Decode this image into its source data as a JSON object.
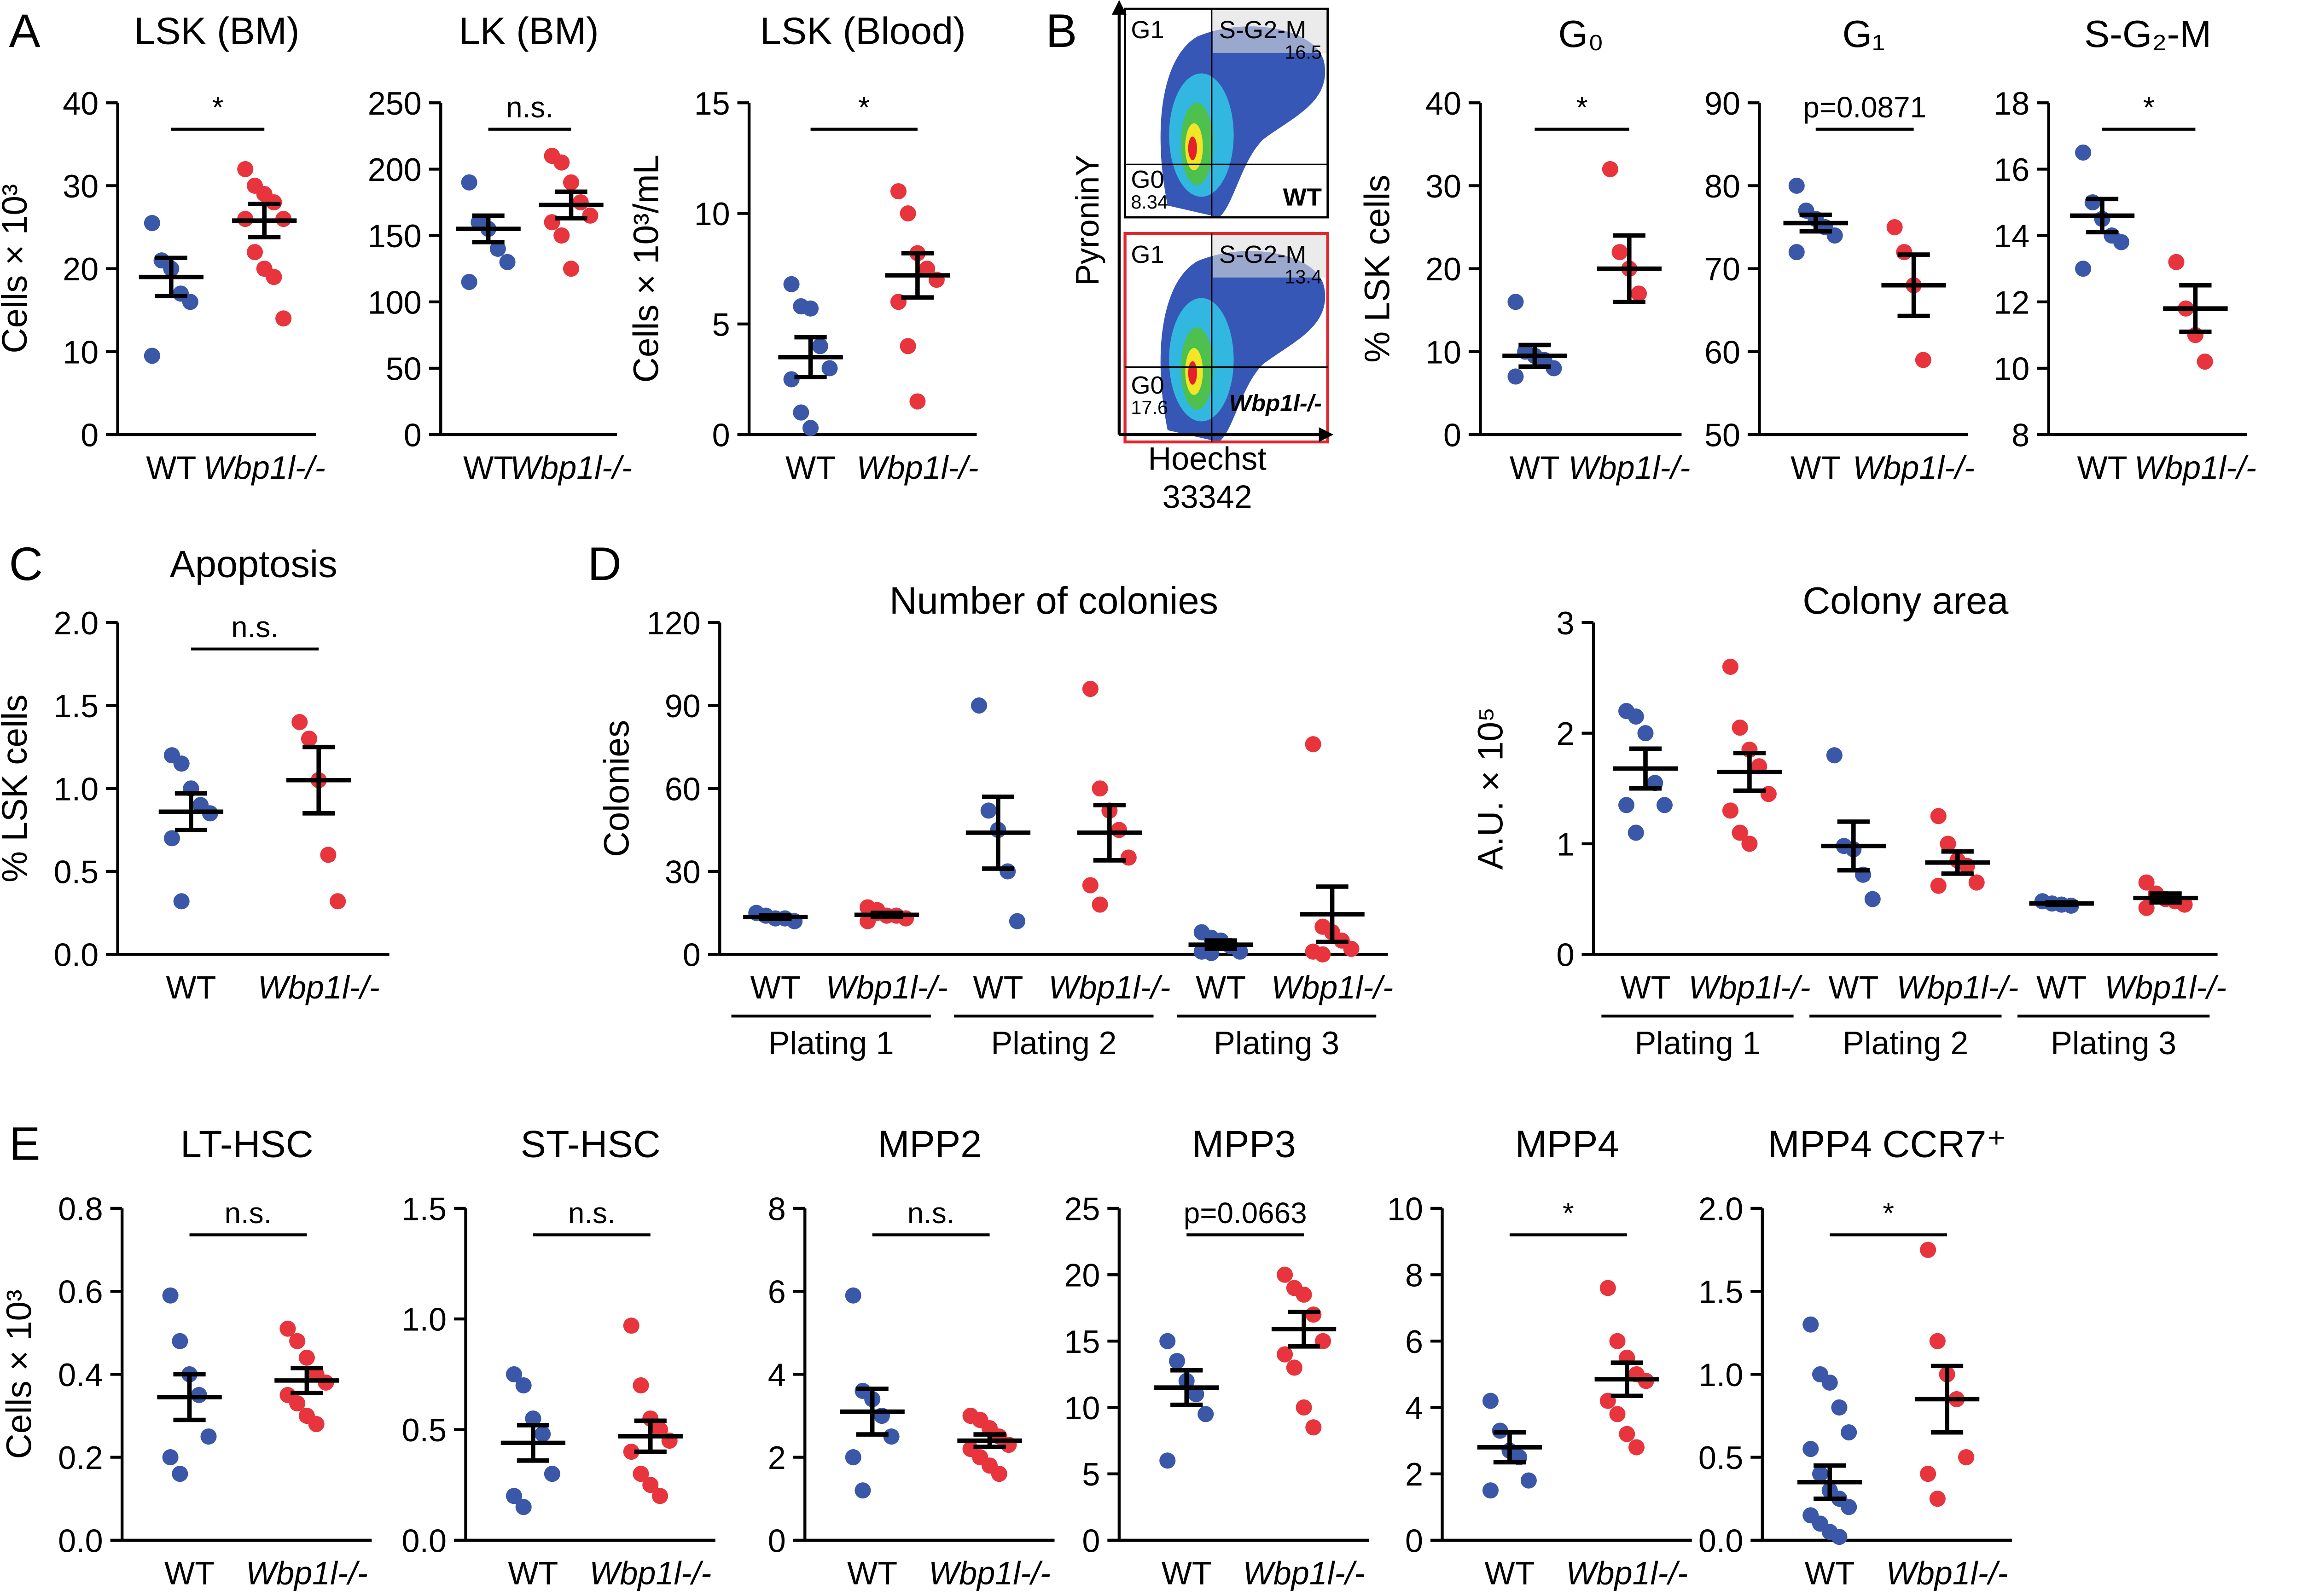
{
  "panels": [
    "A",
    "B",
    "C",
    "D",
    "E"
  ],
  "flow": {
    "ylabel": "PyroninY",
    "xlabel": [
      "Hoechst",
      "33342"
    ],
    "plots": [
      {
        "quadrants": [
          "G1",
          "S-G2-M",
          "G0"
        ],
        "values": [
          16.5,
          8.34
        ],
        "label": "WT"
      },
      {
        "quadrants": [
          "G1",
          "S-G2-M",
          "G0"
        ],
        "values": [
          13.4,
          17.6
        ],
        "label": "Wbp1l-/-"
      }
    ]
  },
  "chart_data": [
    {
      "type": "dot",
      "title": "LSK (BM)",
      "ylabel": "Cells × 10³",
      "ylim": [
        0,
        40
      ],
      "yticks": [
        0,
        10,
        20,
        30,
        40
      ],
      "annotation": "*",
      "series": [
        {
          "name": "WT",
          "color": "#3a57a8",
          "values": [
            25.5,
            21,
            20,
            17,
            16,
            9.5
          ],
          "mean": 19,
          "sem": 2.3
        },
        {
          "name": "Wbp1l-/-",
          "color": "#e8343c",
          "values": [
            32,
            30,
            29,
            28,
            26,
            26,
            22,
            20,
            19,
            14
          ],
          "mean": 25.8,
          "sem": 2
        }
      ]
    },
    {
      "type": "dot",
      "title": "LK (BM)",
      "ylim": [
        0,
        250
      ],
      "yticks": [
        0,
        50,
        100,
        150,
        200,
        250
      ],
      "annotation": "n.s.",
      "series": [
        {
          "name": "WT",
          "color": "#3a57a8",
          "values": [
            190,
            160,
            155,
            140,
            130,
            115
          ],
          "mean": 155,
          "sem": 10
        },
        {
          "name": "Wbp1l-/-",
          "color": "#e8343c",
          "values": [
            210,
            205,
            190,
            175,
            165,
            160,
            150,
            125
          ],
          "mean": 173,
          "sem": 10
        }
      ]
    },
    {
      "type": "dot",
      "title": "LSK (Blood)",
      "ylabel": "Cells × 10³/mL",
      "ylim": [
        0,
        15
      ],
      "yticks": [
        0,
        5,
        10,
        15
      ],
      "annotation": "*",
      "series": [
        {
          "name": "WT",
          "color": "#3a57a8",
          "values": [
            6.8,
            5.8,
            5.7,
            4,
            3,
            2.5,
            1,
            0.3
          ],
          "mean": 3.5,
          "sem": 0.9
        },
        {
          "name": "Wbp1l-/-",
          "color": "#e8343c",
          "values": [
            11,
            10,
            8.2,
            7.5,
            7,
            6,
            4,
            1.5
          ],
          "mean": 7.2,
          "sem": 1
        }
      ]
    },
    {
      "type": "dot",
      "title": "G₀",
      "ylabel": "% LSK cells",
      "ylim": [
        0,
        40
      ],
      "yticks": [
        0,
        10,
        20,
        30,
        40
      ],
      "annotation": "*",
      "series": [
        {
          "name": "WT",
          "color": "#3a57a8",
          "values": [
            16,
            10,
            9.5,
            9,
            8,
            7
          ],
          "mean": 9.5,
          "sem": 1.3
        },
        {
          "name": "Wbp1l-/-",
          "color": "#e8343c",
          "values": [
            32,
            22,
            20,
            17
          ],
          "mean": 20,
          "sem": 4
        }
      ]
    },
    {
      "type": "dot",
      "title": "G₁",
      "ylim": [
        50,
        90
      ],
      "yticks": [
        50,
        60,
        70,
        80,
        90
      ],
      "annotation": "p=0.0871",
      "series": [
        {
          "name": "WT",
          "color": "#3a57a8",
          "values": [
            80,
            77,
            76,
            75,
            74,
            72
          ],
          "mean": 75.5,
          "sem": 1
        },
        {
          "name": "Wbp1l-/-",
          "color": "#e8343c",
          "values": [
            75,
            72,
            68,
            59
          ],
          "mean": 68,
          "sem": 3.7
        }
      ]
    },
    {
      "type": "dot",
      "title": "S-G₂-M",
      "ylim": [
        8,
        18
      ],
      "yticks": [
        8,
        10,
        12,
        14,
        16,
        18
      ],
      "annotation": "*",
      "series": [
        {
          "name": "WT",
          "color": "#3a57a8",
          "values": [
            16.5,
            15,
            14.5,
            14,
            13.8,
            13
          ],
          "mean": 14.6,
          "sem": 0.5
        },
        {
          "name": "Wbp1l-/-",
          "color": "#e8343c",
          "values": [
            13.2,
            11.8,
            11,
            10.2
          ],
          "mean": 11.8,
          "sem": 0.7
        }
      ]
    },
    {
      "type": "dot",
      "title": "Apoptosis",
      "ylabel": "% LSK cells",
      "ylim": [
        0,
        2
      ],
      "yticks": [
        {
          "value": 0,
          "label": "0.0"
        },
        0.5,
        {
          "value": 1,
          "label": "1.0"
        },
        1.5,
        {
          "value": 2,
          "label": "2.0"
        }
      ],
      "annotation": "n.s.",
      "series": [
        {
          "name": "WT",
          "color": "#3a57a8",
          "values": [
            1.2,
            1.15,
            1,
            0.9,
            0.85,
            0.7,
            0.32
          ],
          "mean": 0.86,
          "sem": 0.11
        },
        {
          "name": "Wbp1l-/-",
          "color": "#e8343c",
          "values": [
            1.4,
            1.3,
            1.05,
            0.6,
            0.32
          ],
          "mean": 1.05,
          "sem": 0.2
        }
      ]
    },
    {
      "type": "dot",
      "title": "Number of colonies",
      "ylabel": "Colonies",
      "ylim": [
        0,
        120
      ],
      "yticks": [
        0,
        30,
        60,
        90,
        120
      ],
      "groups": [
        "Plating 1",
        "Plating 2",
        "Plating 3"
      ],
      "series": [
        {
          "name": "WT",
          "color": "#3a57a8",
          "values": [
            15,
            14,
            13,
            13,
            12
          ],
          "mean": 13.5,
          "sem": 0.6
        },
        {
          "name": "Wbp1l-/-",
          "color": "#e8343c",
          "values": [
            17,
            15,
            14,
            14,
            13,
            12,
            16
          ],
          "mean": 14.3,
          "sem": 0.7
        },
        {
          "name": "WT",
          "color": "#3a57a8",
          "values": [
            90,
            52,
            45,
            30,
            12
          ],
          "mean": 44,
          "sem": 13
        },
        {
          "name": "Wbp1l-/-",
          "color": "#e8343c",
          "values": [
            96,
            60,
            52,
            45,
            35,
            25,
            18
          ],
          "mean": 44,
          "sem": 10
        },
        {
          "name": "WT",
          "color": "#3a57a8",
          "values": [
            8,
            6,
            5,
            3,
            1,
            1,
            0.5
          ],
          "mean": 3.5,
          "sem": 1.5
        },
        {
          "name": "Wbp1l-/-",
          "color": "#e8343c",
          "values": [
            76,
            10,
            8,
            5,
            2,
            1,
            0
          ],
          "mean": 14.5,
          "sem": 10
        }
      ]
    },
    {
      "type": "dot",
      "title": "Colony area",
      "ylabel": "A.U. × 10⁵",
      "ylim": [
        0,
        3
      ],
      "yticks": [
        0,
        1,
        2,
        3
      ],
      "groups": [
        "Plating 1",
        "Plating 2",
        "Plating 3"
      ],
      "series": [
        {
          "name": "WT",
          "color": "#3a57a8",
          "values": [
            2.2,
            2.15,
            2,
            1.55,
            1.35,
            1.35,
            1.1
          ],
          "mean": 1.68,
          "sem": 0.18
        },
        {
          "name": "Wbp1l-/-",
          "color": "#e8343c",
          "values": [
            2.6,
            2.05,
            1.85,
            1.7,
            1.45,
            1.3,
            1.1,
            1
          ],
          "mean": 1.65,
          "sem": 0.17
        },
        {
          "name": "WT",
          "color": "#3a57a8",
          "values": [
            1.8,
            0.98,
            0.95,
            0.72,
            0.5
          ],
          "mean": 0.98,
          "sem": 0.22
        },
        {
          "name": "Wbp1l-/-",
          "color": "#e8343c",
          "values": [
            1.25,
            1,
            0.85,
            0.8,
            0.65,
            0.62
          ],
          "mean": 0.83,
          "sem": 0.1
        },
        {
          "name": "WT",
          "color": "#3a57a8",
          "values": [
            0.48,
            0.46,
            0.45,
            0.44
          ],
          "mean": 0.46,
          "sem": 0.01
        },
        {
          "name": "Wbp1l-/-",
          "color": "#e8343c",
          "values": [
            0.65,
            0.55,
            0.5,
            0.48,
            0.45,
            0.42
          ],
          "mean": 0.51,
          "sem": 0.04
        }
      ]
    },
    {
      "type": "dot",
      "title": "LT-HSC",
      "ylabel": "Cells × 10³",
      "ylim": [
        0,
        0.8
      ],
      "yticks": [
        {
          "value": 0,
          "label": "0.0"
        },
        0.2,
        0.4,
        0.6,
        0.8
      ],
      "annotation": "n.s.",
      "series": [
        {
          "name": "WT",
          "color": "#3a57a8",
          "values": [
            0.59,
            0.48,
            0.4,
            0.35,
            0.25,
            0.2,
            0.16
          ],
          "mean": 0.345,
          "sem": 0.055
        },
        {
          "name": "Wbp1l-/-",
          "color": "#e8343c",
          "values": [
            0.51,
            0.48,
            0.44,
            0.4,
            0.38,
            0.35,
            0.33,
            0.3,
            0.28
          ],
          "mean": 0.385,
          "sem": 0.03
        }
      ]
    },
    {
      "type": "dot",
      "title": "ST-HSC",
      "ylim": [
        0,
        1.5
      ],
      "yticks": [
        {
          "value": 0,
          "label": "0.0"
        },
        0.5,
        {
          "value": 1,
          "label": "1.0"
        },
        1.5
      ],
      "annotation": "n.s.",
      "series": [
        {
          "name": "WT",
          "color": "#3a57a8",
          "values": [
            0.75,
            0.7,
            0.55,
            0.48,
            0.3,
            0.2,
            0.15
          ],
          "mean": 0.44,
          "sem": 0.08
        },
        {
          "name": "Wbp1l-/-",
          "color": "#e8343c",
          "values": [
            0.97,
            0.7,
            0.55,
            0.5,
            0.45,
            0.4,
            0.3,
            0.25,
            0.2
          ],
          "mean": 0.47,
          "sem": 0.07
        }
      ]
    },
    {
      "type": "dot",
      "title": "MPP2",
      "ylim": [
        0,
        8
      ],
      "yticks": [
        0,
        2,
        4,
        6,
        8
      ],
      "annotation": "n.s.",
      "series": [
        {
          "name": "WT",
          "color": "#3a57a8",
          "values": [
            5.9,
            3.6,
            3.4,
            3,
            2.5,
            2,
            1.2
          ],
          "mean": 3.1,
          "sem": 0.55
        },
        {
          "name": "Wbp1l-/-",
          "color": "#e8343c",
          "values": [
            3,
            2.9,
            2.7,
            2.5,
            2.3,
            2.2,
            2,
            1.8,
            1.6
          ],
          "mean": 2.4,
          "sem": 0.15
        }
      ]
    },
    {
      "type": "dot",
      "title": "MPP3",
      "ylim": [
        0,
        25
      ],
      "yticks": [
        0,
        5,
        10,
        15,
        20,
        25
      ],
      "annotation": "p=0.0663",
      "series": [
        {
          "name": "WT",
          "color": "#3a57a8",
          "values": [
            15,
            13.5,
            12,
            11,
            9.5,
            6
          ],
          "mean": 11.5,
          "sem": 1.3
        },
        {
          "name": "Wbp1l-/-",
          "color": "#e8343c",
          "values": [
            20,
            19,
            18.5,
            17,
            15,
            14,
            13,
            10,
            8.5
          ],
          "mean": 15.9,
          "sem": 1.3
        }
      ]
    },
    {
      "type": "dot",
      "title": "MPP4",
      "ylim": [
        0,
        10
      ],
      "yticks": [
        0,
        2,
        4,
        6,
        8,
        10
      ],
      "annotation": "*",
      "series": [
        {
          "name": "WT",
          "color": "#3a57a8",
          "values": [
            4.2,
            3.3,
            2.7,
            2.5,
            1.8,
            1.5
          ],
          "mean": 2.8,
          "sem": 0.45
        },
        {
          "name": "Wbp1l-/-",
          "color": "#e8343c",
          "values": [
            7.6,
            6,
            5.5,
            5,
            4.8,
            4.2,
            3.8,
            3.2,
            2.8
          ],
          "mean": 4.85,
          "sem": 0.5
        }
      ]
    },
    {
      "type": "dot",
      "title": "MPP4 CCR7⁺",
      "ylim": [
        0,
        2
      ],
      "yticks": [
        {
          "value": 0,
          "label": "0.0"
        },
        0.5,
        {
          "value": 1,
          "label": "1.0"
        },
        1.5,
        {
          "value": 2,
          "label": "2.0"
        }
      ],
      "annotation": "*",
      "series": [
        {
          "name": "WT",
          "color": "#3a57a8",
          "values": [
            1.3,
            1,
            0.95,
            0.8,
            0.65,
            0.55,
            0.4,
            0.3,
            0.25,
            0.2,
            0.15,
            0.1,
            0.05,
            0.02
          ],
          "mean": 0.35,
          "sem": 0.1
        },
        {
          "name": "Wbp1l-/-",
          "color": "#e8343c",
          "values": [
            1.75,
            1.2,
            1,
            0.85,
            0.5,
            0.4,
            0.25
          ],
          "mean": 0.85,
          "sem": 0.2
        }
      ]
    }
  ]
}
